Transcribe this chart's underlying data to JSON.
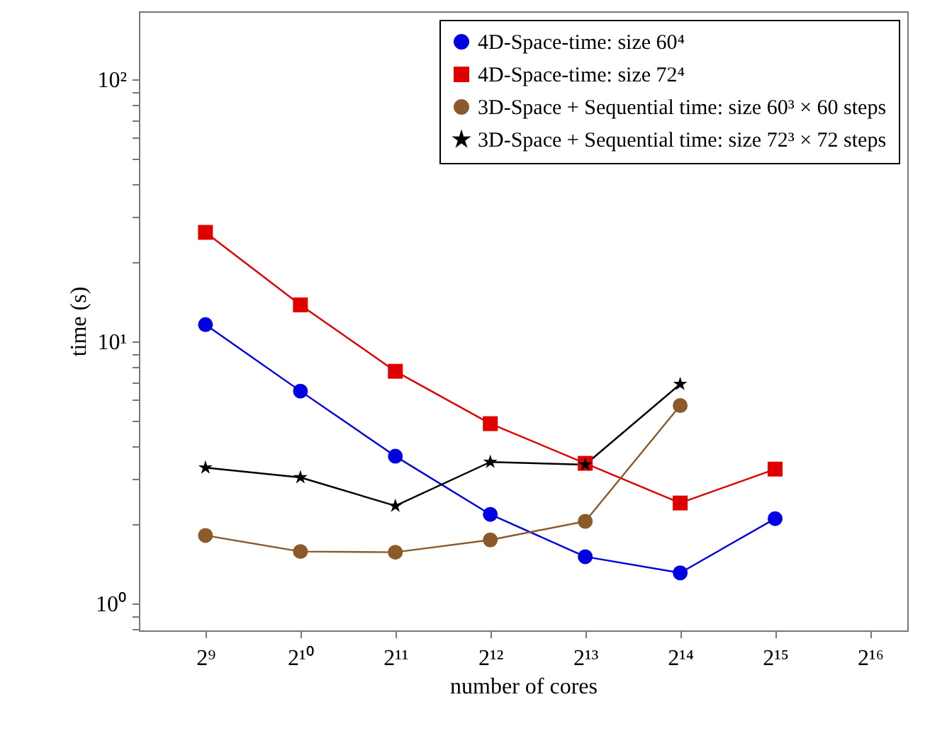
{
  "chart_data": {
    "type": "line",
    "xlabel": "number of cores",
    "ylabel": "time (s)",
    "log": "xy",
    "grid": false,
    "legend": "top right",
    "x": [
      512,
      1024,
      2048,
      4096,
      8192,
      16384,
      32768
    ],
    "xlim": [
      315,
      86000
    ],
    "ylim": [
      0.79,
      182
    ],
    "xticks": [
      {
        "value": 512,
        "label": "2⁹"
      },
      {
        "value": 1024,
        "label": "2¹⁰"
      },
      {
        "value": 2048,
        "label": "2¹¹"
      },
      {
        "value": 4096,
        "label": "2¹²"
      },
      {
        "value": 8192,
        "label": "2¹³"
      },
      {
        "value": 16384,
        "label": "2¹⁴"
      },
      {
        "value": 32768,
        "label": "2¹⁵"
      },
      {
        "value": 65536,
        "label": "2¹⁶"
      }
    ],
    "yticks": [
      {
        "value": 0.8,
        "label": null
      },
      {
        "value": 0.9,
        "label": null
      },
      {
        "value": 1,
        "label": "10⁰"
      },
      {
        "value": 2,
        "label": null
      },
      {
        "value": 3,
        "label": null
      },
      {
        "value": 4,
        "label": null
      },
      {
        "value": 5,
        "label": null
      },
      {
        "value": 6,
        "label": null
      },
      {
        "value": 7,
        "label": null
      },
      {
        "value": 8,
        "label": null
      },
      {
        "value": 9,
        "label": null
      },
      {
        "value": 10,
        "label": "10¹"
      },
      {
        "value": 20,
        "label": null
      },
      {
        "value": 30,
        "label": null
      },
      {
        "value": 40,
        "label": null
      },
      {
        "value": 50,
        "label": null
      },
      {
        "value": 60,
        "label": null
      },
      {
        "value": 70,
        "label": null
      },
      {
        "value": 80,
        "label": null
      },
      {
        "value": 90,
        "label": null
      },
      {
        "value": 100,
        "label": "10²"
      }
    ],
    "series": [
      {
        "name": "4D-Space-time: size 60⁴",
        "color": "#0000e0",
        "marker": "circle",
        "values": [
          11.6,
          6.47,
          3.65,
          2.19,
          1.51,
          1.31,
          2.11
        ]
      },
      {
        "name": "4D-Space-time: size 72⁴",
        "color": "#e00000",
        "marker": "square",
        "values": [
          26.1,
          13.8,
          7.7,
          4.86,
          3.43,
          2.42,
          3.26
        ]
      },
      {
        "name": "3D-Space + Sequential time: size 60³ × 60 steps",
        "color": "#8b5a2b",
        "marker": "circle",
        "values": [
          1.82,
          1.58,
          1.57,
          1.75,
          2.06,
          5.7,
          null
        ]
      },
      {
        "name": "3D-Space + Sequential time: size 72³ × 72 steps",
        "color": "#000000",
        "marker": "star",
        "values": [
          3.3,
          3.03,
          2.36,
          3.47,
          3.39,
          6.88,
          null
        ]
      }
    ]
  }
}
